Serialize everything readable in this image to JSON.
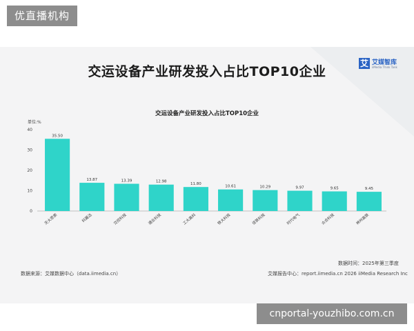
{
  "page": {
    "top_badge": "优直播机构",
    "main_title": "交运设备产业研发投入占比TOP10企业",
    "logo_mark": "艾",
    "logo_name": "艾媒智库",
    "logo_sub": "iiMedia Think Tank",
    "data_time": "数据时间：2025年第三季度",
    "source_left": "数据来源：艾媒数据中心（data.iimedia.cn）",
    "source_right": "艾媒报告中心：report.iimedia.cn  2026 iiMedia Research Inc",
    "footer_bar": "cnportal-youzhibo.com.cn"
  },
  "chart_data": {
    "type": "bar",
    "title": "交运设备产业研发投入占比TOP10企业",
    "ylabel": "单位:%",
    "xlabel": "",
    "ylim": [
      0,
      40
    ],
    "yticks": [
      0,
      10,
      20,
      30,
      40
    ],
    "grid": false,
    "categories": [
      "天大思索",
      "科翼达",
      "交控科技",
      "通业科技",
      "工大高科",
      "铁大科技",
      "佳铁科技",
      "时代电气",
      "众合科技",
      "神州高铁"
    ],
    "values": [
      35.5,
      13.87,
      13.39,
      12.98,
      11.8,
      10.61,
      10.29,
      9.97,
      9.65,
      9.45
    ],
    "value_labels": [
      "35.50",
      "13.87",
      "13.39",
      "12.98",
      "11.80",
      "10.61",
      "10.29",
      "9.97",
      "9.65",
      "9.45"
    ],
    "bar_color": "#2fd4c9"
  }
}
